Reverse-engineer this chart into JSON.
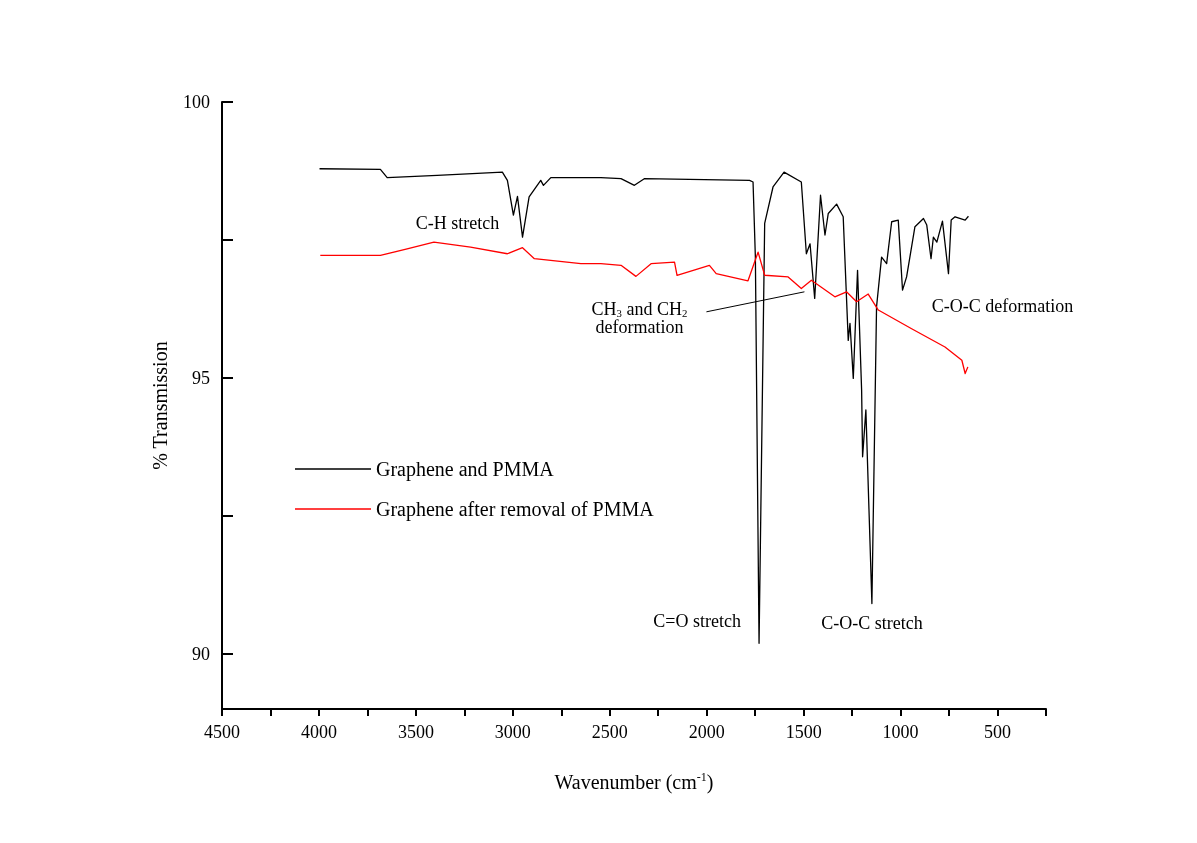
{
  "chart_data": {
    "type": "line",
    "xlabel": "Wavenumber (cm$^{-1}$)",
    "ylabel": "% Transmission",
    "xlim": [
      4500,
      250
    ],
    "xticks": [
      4500,
      {
        "value": 4250,
        "label": null
      },
      4000,
      {
        "value": 3750,
        "label": null
      },
      3500,
      {
        "value": 3250,
        "label": null
      },
      3000,
      {
        "value": 2750,
        "label": null
      },
      2500,
      {
        "value": 2250,
        "label": null
      },
      2000,
      {
        "value": 1750,
        "label": null
      },
      1500,
      {
        "value": 1250,
        "label": null
      },
      1000,
      {
        "value": 750,
        "label": null
      },
      500,
      {
        "value": 250,
        "label": null
      }
    ],
    "ylim": [
      89,
      100
    ],
    "yticks": [
      90,
      {
        "value": 92.5,
        "label": null
      },
      95,
      {
        "value": 97.5,
        "label": null
      },
      100
    ],
    "legend": "left",
    "series": [
      {
        "name": "Graphene and PMMA",
        "color": "#000000",
        "x": [
          3997,
          3683,
          3648,
          3390,
          3054,
          3028,
          2997,
          2976,
          2950,
          2916,
          2856,
          2842,
          2804,
          2546,
          2442,
          2373,
          2322,
          1779,
          1761,
          1749,
          1730,
          1701,
          1658,
          1601,
          1512,
          1486,
          1467,
          1443,
          1413,
          1390,
          1373,
          1330,
          1296,
          1270,
          1261,
          1244,
          1222,
          1201,
          1196,
          1179,
          1148,
          1124,
          1098,
          1072,
          1046,
          1012,
          990,
          969,
          926,
          882,
          865,
          843,
          831,
          813,
          784,
          753,
          739,
          719,
          667,
          650
        ],
        "values": [
          98.79,
          98.78,
          98.63,
          98.67,
          98.73,
          98.58,
          97.95,
          98.29,
          97.55,
          98.28,
          98.58,
          98.49,
          98.63,
          98.63,
          98.61,
          98.49,
          98.61,
          98.58,
          98.55,
          97.19,
          90.19,
          97.8,
          98.46,
          98.73,
          98.55,
          97.25,
          97.43,
          96.44,
          98.31,
          97.59,
          97.98,
          98.15,
          97.92,
          95.68,
          95.99,
          94.99,
          96.95,
          94.78,
          93.57,
          94.42,
          90.91,
          96.29,
          97.19,
          97.07,
          97.83,
          97.86,
          96.59,
          96.83,
          97.74,
          97.89,
          97.77,
          97.16,
          97.55,
          97.46,
          97.84,
          96.89,
          97.86,
          97.92,
          97.86,
          97.93
        ]
      },
      {
        "name": "Graphene after removal of PMMA",
        "color": "#ff0000",
        "x": [
          3993,
          3683,
          3545,
          3407,
          3218,
          3028,
          2950,
          2889,
          2649,
          2546,
          2442,
          2365,
          2287,
          2166,
          2153,
          1986,
          1951,
          1787,
          1735,
          1701,
          1580,
          1512,
          1460,
          1339,
          1279,
          1227,
          1167,
          1115,
          943,
          771,
          684,
          667,
          653
        ],
        "values": [
          97.22,
          97.22,
          97.34,
          97.46,
          97.37,
          97.25,
          97.36,
          97.16,
          97.07,
          97.07,
          97.04,
          96.84,
          97.07,
          97.1,
          96.86,
          97.04,
          96.89,
          96.76,
          97.28,
          96.86,
          96.83,
          96.62,
          96.77,
          96.47,
          96.56,
          96.38,
          96.52,
          96.23,
          95.89,
          95.56,
          95.32,
          95.08,
          95.2
        ]
      }
    ],
    "annotations": [
      {
        "text": "C-H stretch",
        "x": 2950,
        "y": 97.55
      },
      {
        "text": "CH$_{3}$ and CH$_{2}$\ndeformation",
        "x": 1496,
        "y": 96.56
      },
      {
        "text": "C=O stretch",
        "x": 1730,
        "y": 90.19
      },
      {
        "text": "C-O-C stretch",
        "x": 1148,
        "y": 90.91
      },
      {
        "text": "C-O-C deformation",
        "x": 990,
        "y": 96.59
      }
    ]
  }
}
